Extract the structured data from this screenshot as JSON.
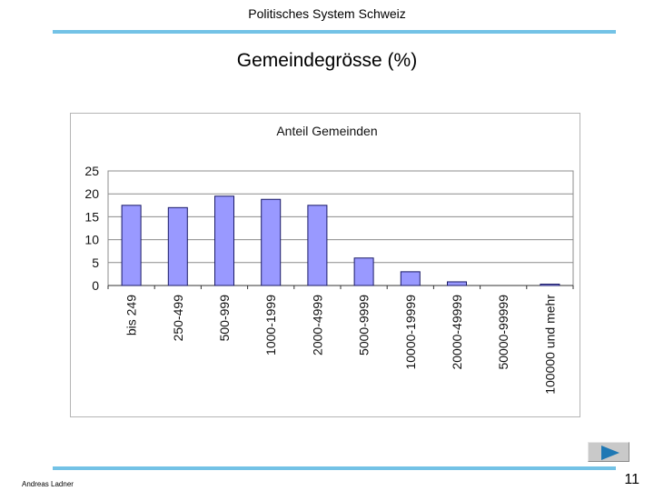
{
  "header": {
    "title": "Politisches System Schweiz"
  },
  "page": {
    "title": "Gemeindegrösse (%)",
    "number": "11"
  },
  "footer": {
    "author": "Andreas Ladner"
  },
  "colors": {
    "accent_rule": "#73c2e6",
    "bar_fill": "#9999ff",
    "bar_stroke": "#1a1a66"
  },
  "nav": {
    "next_icon": "play-triangle-icon"
  },
  "chart_data": {
    "type": "bar",
    "title": "Anteil Gemeinden",
    "xlabel": "",
    "ylabel": "",
    "categories": [
      "bis 249",
      "250-499",
      "500-999",
      "1000-1999",
      "2000-4999",
      "5000-9999",
      "10000-19999",
      "20000-49999",
      "50000-99999",
      "100000 und mehr"
    ],
    "values": [
      17.5,
      17,
      19.5,
      18.8,
      17.5,
      6,
      3,
      0.8,
      0,
      0.3
    ],
    "ylim": [
      0,
      25
    ],
    "yticks": [
      "0",
      "5",
      "10",
      "15",
      "20",
      "25"
    ],
    "grid": true,
    "legend": "none"
  }
}
